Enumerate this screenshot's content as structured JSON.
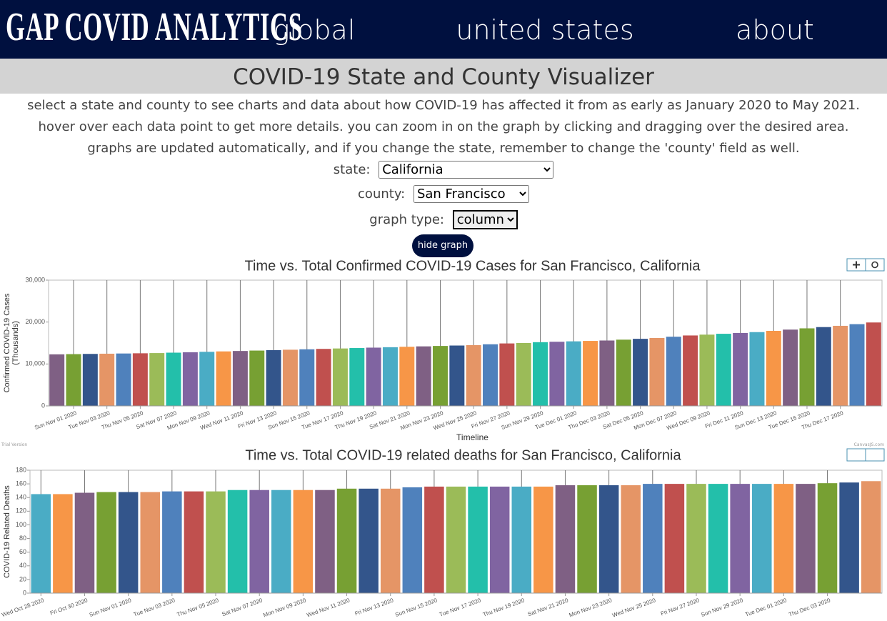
{
  "nav": {
    "logo": "GAP COVID ANALYTICS",
    "links": [
      "global",
      "united states",
      "about"
    ]
  },
  "header": {
    "title": "COVID-19 State and County Visualizer",
    "description": [
      "select a state and county to see charts and data about how COVID-19 has affected it from as early as January 2020 to May 2021.",
      "hover over each data point to get more details. you can zoom in on the graph by clicking and dragging over the desired area.",
      "graphs are updated automatically, and if you change the state, remember to change the 'county' field as well."
    ]
  },
  "form": {
    "state": {
      "label": "state:",
      "value": "California"
    },
    "county": {
      "label": "county:",
      "value": "San Francisco"
    },
    "graph_type": {
      "label": "graph type:",
      "value": "column"
    },
    "button": "hide graph"
  },
  "watermark": {
    "left": "Trial Version",
    "right": "CanvasJS.com"
  },
  "chart_data": [
    {
      "type": "bar",
      "title": "Time vs. Total Confirmed COVID-19 Cases for San Francisco, California",
      "xlabel": "Timeline",
      "ylabel": [
        "Confirmed COVID-19 Cases",
        "(Thousands)"
      ],
      "categories": [
        null,
        "Sun Nov 01 2020",
        null,
        "Tue Nov 03 2020",
        null,
        "Thu Nov 05 2020",
        null,
        "Sat Nov 07 2020",
        null,
        "Mon Nov 09 2020",
        null,
        "Wed Nov 11 2020",
        null,
        "Fri Nov 13 2020",
        null,
        "Sun Nov 15 2020",
        null,
        "Tue Nov 17 2020",
        null,
        "Thu Nov 19 2020",
        null,
        "Sat Nov 21 2020",
        null,
        "Mon Nov 23 2020",
        null,
        "Wed Nov 25 2020",
        null,
        "Fri Nov 27 2020",
        null,
        "Sun Nov 29 2020",
        null,
        "Tue Dec 01 2020",
        null,
        "Thu Dec 03 2020",
        null,
        "Sat Dec 05 2020",
        null,
        "Mon Dec 07 2020",
        null,
        "Wed Dec 09 2020",
        null,
        "Fri Dec 11 2020",
        null,
        "Sun Dec 13 2020",
        null,
        "Tue Dec 15 2020",
        null,
        "Thu Dec 17 2020",
        null,
        null
      ],
      "values": [
        12300,
        12350,
        12400,
        12450,
        12500,
        12550,
        12600,
        12700,
        12800,
        12900,
        13000,
        13100,
        13200,
        13300,
        13400,
        13500,
        13600,
        13700,
        13800,
        13900,
        14000,
        14100,
        14200,
        14300,
        14400,
        14500,
        14700,
        14900,
        15000,
        15200,
        15300,
        15400,
        15500,
        15600,
        15800,
        16000,
        16200,
        16500,
        16800,
        17000,
        17200,
        17400,
        17600,
        17900,
        18200,
        18500,
        18800,
        19100,
        19500,
        19900
      ],
      "colors": [
        "#7F6084",
        "#77A033",
        "#33558B",
        "#E59566",
        "#4F81BC",
        "#C0504E",
        "#9BBB58",
        "#23BFAA",
        "#8064A1",
        "#4AACC5",
        "#F79647"
      ],
      "ylim": [
        0,
        30000
      ],
      "yticks": [
        0,
        {
          "value": 10000,
          "label": "10,000"
        },
        {
          "value": 20000,
          "label": "20,000"
        },
        {
          "value": 30000,
          "label": "30,000"
        }
      ],
      "grid": true
    },
    {
      "type": "bar",
      "title": "Time vs. Total COVID-19 related deaths for San Francisco, California",
      "ylabel": [
        "COVID-19 Related Deaths"
      ],
      "categories": [
        "Wed Oct 28 2020",
        null,
        "Fri Oct 30 2020",
        null,
        "Sun Nov 01 2020",
        null,
        "Tue Nov 03 2020",
        null,
        "Thu Nov 05 2020",
        null,
        "Sat Nov 07 2020",
        null,
        "Mon Nov 09 2020",
        null,
        "Wed Nov 11 2020",
        null,
        "Fri Nov 13 2020",
        null,
        "Sun Nov 15 2020",
        null,
        "Tue Nov 17 2020",
        null,
        "Thu Nov 19 2020",
        null,
        "Sat Nov 21 2020",
        null,
        "Mon Nov 23 2020",
        null,
        "Wed Nov 25 2020",
        null,
        "Fri Nov 27 2020",
        null,
        "Sun Nov 29 2020",
        null,
        "Tue Dec 01 2020",
        null,
        "Thu Dec 03 2020",
        null,
        null
      ],
      "values": [
        145,
        145,
        147,
        148,
        148,
        148,
        149,
        149,
        149,
        151,
        151,
        151,
        151,
        151,
        153,
        153,
        153,
        155,
        156,
        156,
        156,
        156,
        156,
        156,
        158,
        158,
        158,
        158,
        160,
        160,
        160,
        160,
        160,
        160,
        160,
        160,
        161,
        162,
        164
      ],
      "colors": [
        "#4AACC5",
        "#F79647",
        "#7F6084",
        "#77A033",
        "#33558B",
        "#E59566",
        "#4F81BC",
        "#C0504E",
        "#9BBB58",
        "#23BFAA",
        "#8064A1"
      ],
      "ylim": [
        0,
        180
      ],
      "yticks": [
        0,
        20,
        40,
        60,
        80,
        100,
        120,
        140,
        160,
        180
      ],
      "grid": true
    }
  ]
}
